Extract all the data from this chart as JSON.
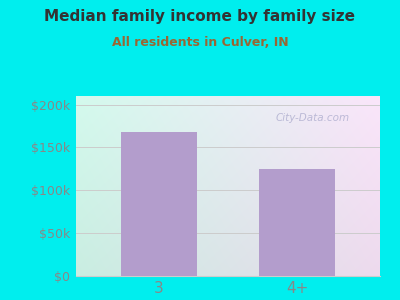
{
  "title": "Median family income by family size",
  "subtitle": "All residents in Culver, IN",
  "categories": [
    "3",
    "4+"
  ],
  "values": [
    168000,
    125000
  ],
  "bar_color": "#b39dcc",
  "title_color": "#333333",
  "subtitle_color": "#996633",
  "bg_color": "#00eeee",
  "yticks": [
    0,
    50000,
    100000,
    150000,
    200000
  ],
  "ytick_labels": [
    "$0",
    "$50k",
    "$100k",
    "$150k",
    "$200k"
  ],
  "ylim": [
    0,
    210000
  ],
  "watermark": "City-Data.com",
  "tick_color": "#888888",
  "grid_color": "#cccccc"
}
